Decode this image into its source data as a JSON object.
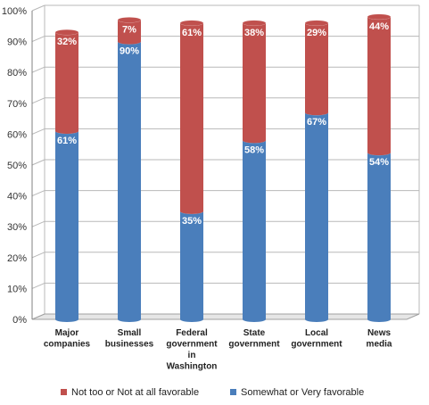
{
  "chart_data": {
    "type": "bar",
    "stacked": true,
    "categories": [
      [
        "Major",
        "companies"
      ],
      [
        "Small",
        "businesses"
      ],
      [
        "Federal",
        "government",
        "in",
        "Washington"
      ],
      [
        "State",
        "government"
      ],
      [
        "Local",
        "government"
      ],
      [
        "News",
        "media"
      ]
    ],
    "series": [
      {
        "name": "Somewhat or Very favorable",
        "color": "#4a7ebb",
        "values": [
          61,
          90,
          35,
          58,
          67,
          54
        ]
      },
      {
        "name": "Not too or Not at all favorable",
        "color": "#c0504d",
        "values": [
          32,
          7,
          61,
          38,
          29,
          44
        ]
      }
    ],
    "data_label_suffix": "%",
    "ylim": [
      0,
      100
    ],
    "yticks": [
      "0%",
      "10%",
      "20%",
      "30%",
      "40%",
      "50%",
      "60%",
      "70%",
      "80%",
      "90%",
      "100%"
    ],
    "grid": true,
    "legend_position": "bottom",
    "legend_order": [
      "Not too or Not at all favorable",
      "Somewhat or Very favorable"
    ],
    "title": "",
    "xlabel": "",
    "ylabel": ""
  }
}
